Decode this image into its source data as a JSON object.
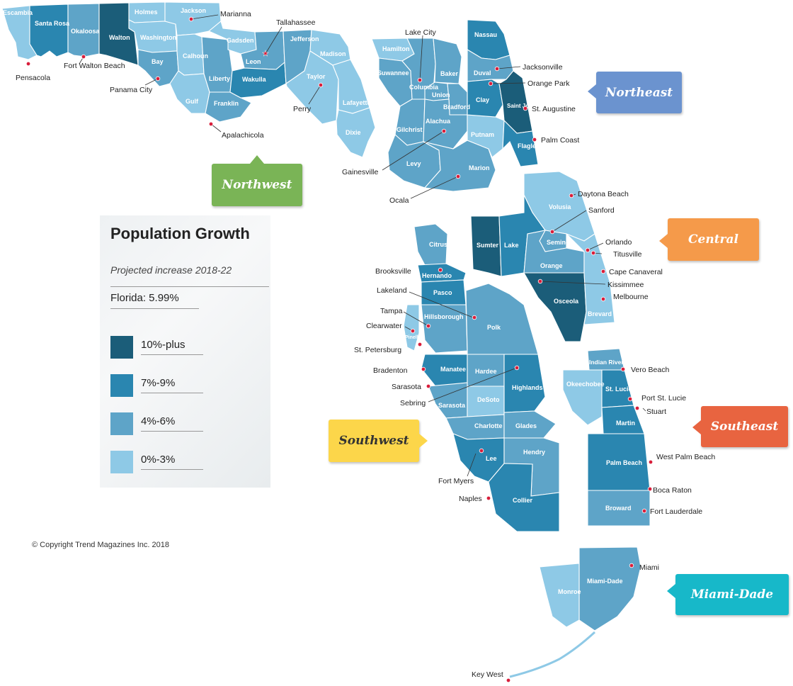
{
  "colors": {
    "c10": "#1b5d79",
    "c7": "#2a86b0",
    "c4": "#5ea4c8",
    "c0": "#8ec9e6",
    "northwest": "#7ab456",
    "northeast": "#6b93cf",
    "central": "#f59a4a",
    "southwest": "#fcd64a",
    "southeast": "#e86440",
    "miamidade": "#17b8c9"
  },
  "legend": {
    "title": "Population Growth",
    "subtitle": "Projected increase 2018-22",
    "state_rate": "Florida: 5.99%",
    "items": [
      {
        "label": "10%-plus",
        "color": "#1b5d79"
      },
      {
        "label": "7%-9%",
        "color": "#2a86b0"
      },
      {
        "label": "4%-6%",
        "color": "#5ea4c8"
      },
      {
        "label": "0%-3%",
        "color": "#8ec9e6"
      }
    ]
  },
  "regions": {
    "northwest": "Northwest",
    "northeast": "Northeast",
    "central": "Central",
    "southwest": "Southwest",
    "southeast": "Southeast",
    "miamidade": "Miami-Dade"
  },
  "copyright": "© Copyright Trend Magazines Inc. 2018",
  "counties": {
    "escambia": "Escambia",
    "santa_rosa": "Santa Rosa",
    "okaloosa": "Okaloosa",
    "walton": "Walton",
    "holmes": "Holmes",
    "washington": "Washington",
    "jackson": "Jackson",
    "bay": "Bay",
    "calhoun": "Calhoun",
    "gulf": "Gulf",
    "liberty": "Liberty",
    "franklin": "Franklin",
    "gadsden": "Gadsden",
    "leon": "Leon",
    "wakulla": "Wakulla",
    "jefferson": "Jefferson",
    "madison": "Madison",
    "taylor": "Taylor",
    "lafayette": "Lafayette",
    "dixie": "Dixie",
    "hamilton": "Hamilton",
    "suwannee": "Suwannee",
    "columbia": "Columbia",
    "baker": "Baker",
    "union": "Union",
    "bradford": "Bradford",
    "gilchrist": "Gilchrist",
    "alachua": "Alachua",
    "levy": "Levy",
    "marion": "Marion",
    "putnam": "Putnam",
    "nassau": "Nassau",
    "duval": "Duval",
    "clay": "Clay",
    "saint_johns": "Saint Johns",
    "flagler": "Flagler",
    "volusia": "Volusia",
    "sumter": "Sumter",
    "lake": "Lake",
    "seminole": "Seminole",
    "orange": "Orange",
    "osceola": "Osceola",
    "brevard": "Brevard",
    "citrus": "Citrus",
    "hernando": "Hernando",
    "pasco": "Pasco",
    "hillsborough": "Hillsborough",
    "pinellas": "Pinellas",
    "polk": "Polk",
    "manatee": "Manatee",
    "hardee": "Hardee",
    "highlands": "Highlands",
    "sarasota": "Sarasota",
    "desoto": "DeSoto",
    "charlotte": "Charlotte",
    "glades": "Glades",
    "lee": "Lee",
    "hendry": "Hendry",
    "collier": "Collier",
    "indian_river": "Indian River",
    "okeechobee": "Okeechobee",
    "st_lucie": "St. Lucie",
    "martin": "Martin",
    "palm_beach": "Palm Beach",
    "broward": "Broward",
    "miami_dade": "Miami-Dade",
    "monroe": "Monroe"
  },
  "cities": {
    "pensacola": "Pensacola",
    "fort_walton_beach": "Fort Walton Beach",
    "panama_city": "Panama City",
    "marianna": "Marianna",
    "tallahassee": "Tallahassee",
    "apalachicola": "Apalachicola",
    "perry": "Perry",
    "lake_city": "Lake City",
    "gainesville": "Gainesville",
    "ocala": "Ocala",
    "jacksonville": "Jacksonville",
    "orange_park": "Orange Park",
    "st_augustine": "St. Augustine",
    "palm_coast": "Palm Coast",
    "daytona_beach": "Daytona Beach",
    "sanford": "Sanford",
    "orlando": "Orlando",
    "titusville": "Titusville",
    "cape_canaveral": "Cape Canaveral",
    "kissimmee": "Kissimmee",
    "melbourne": "Melbourne",
    "brooksville": "Brooksville",
    "lakeland": "Lakeland",
    "tampa": "Tampa",
    "clearwater": "Clearwater",
    "st_petersburg": "St. Petersburg",
    "bradenton": "Bradenton",
    "sarasota": "Sarasota",
    "sebring": "Sebring",
    "fort_myers": "Fort Myers",
    "naples": "Naples",
    "vero_beach": "Vero Beach",
    "port_st_lucie": "Port St. Lucie",
    "stuart": "Stuart",
    "west_palm_beach": "West Palm Beach",
    "boca_raton": "Boca Raton",
    "fort_lauderdale": "Fort Lauderdale",
    "miami": "Miami",
    "key_west": "Key West"
  }
}
